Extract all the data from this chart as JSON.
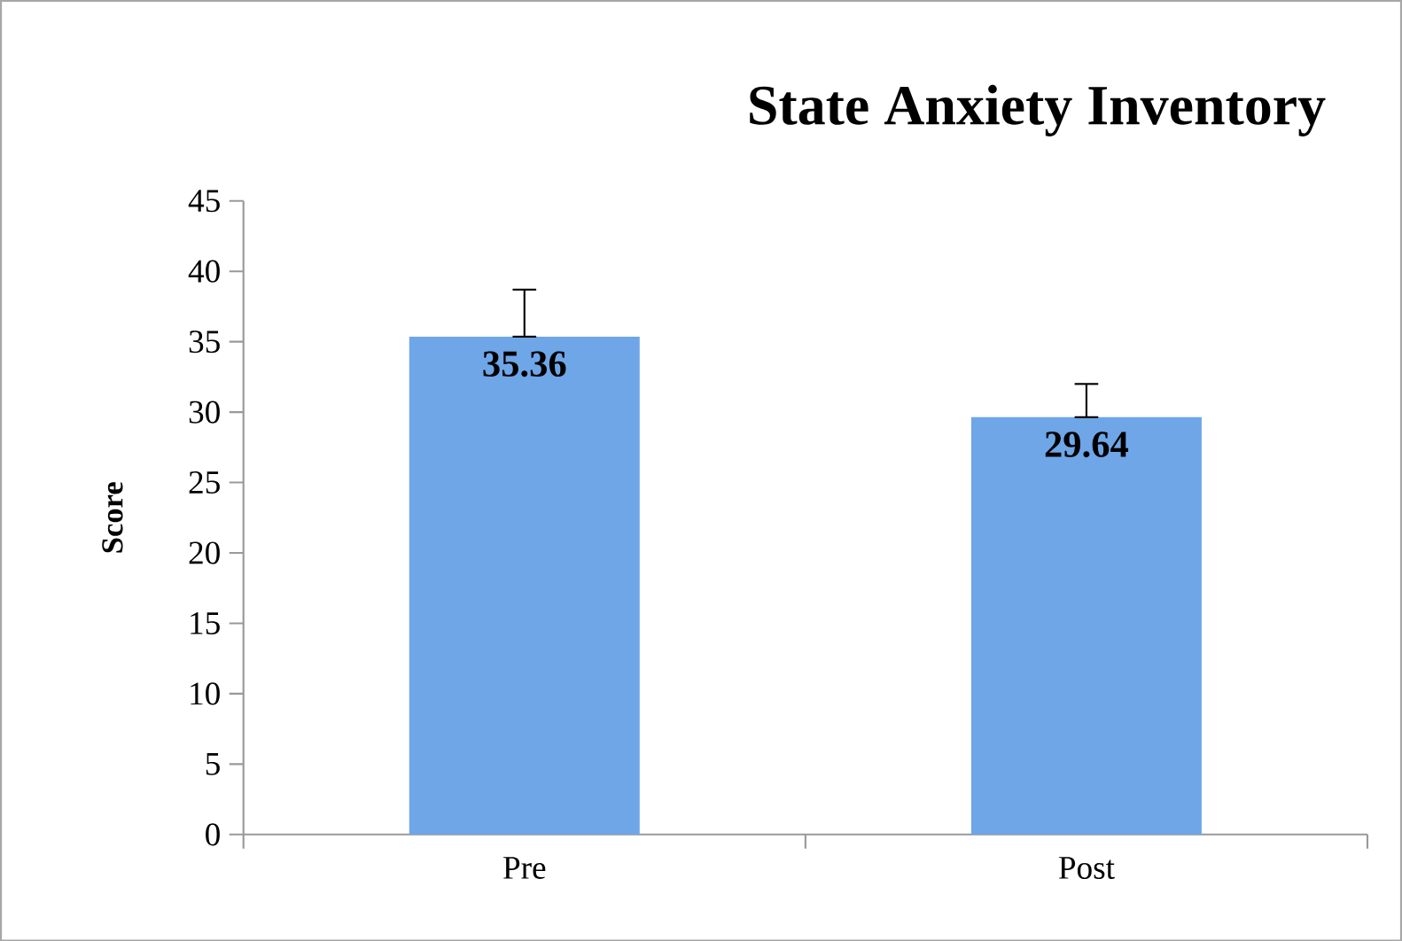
{
  "chart_data": {
    "type": "bar",
    "title": "State Anxiety Inventory",
    "ylabel": "Score",
    "categories": [
      "Pre",
      "Post"
    ],
    "values": [
      35.36,
      29.64
    ],
    "errors": [
      [
        35.36,
        38.7
      ],
      [
        29.64,
        32.0
      ]
    ],
    "color": "#6ea6e8",
    "data_labels": true,
    "ylim": [
      0,
      45
    ],
    "yticks": [
      0,
      5,
      10,
      15,
      20,
      25,
      30,
      35,
      40,
      45
    ]
  }
}
